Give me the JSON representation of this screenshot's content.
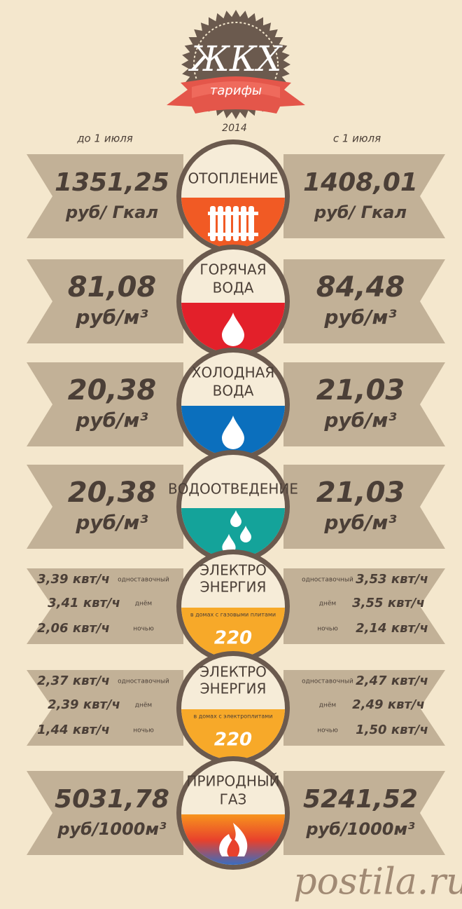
{
  "header": {
    "title": "ЖКХ",
    "ribbon": "тарифы",
    "year": "2014",
    "left_heading": "до 1 июля",
    "right_heading": "с 1 июля"
  },
  "rows": [
    {
      "label": [
        "ОТОПЛЕНИЕ"
      ],
      "icon": "radiator",
      "colors": [
        "#f15a24"
      ],
      "before": {
        "value": "1351,25",
        "unit": "руб/ Гкал"
      },
      "after": {
        "value": "1408,01",
        "unit": "руб/ Гкал"
      }
    },
    {
      "label": [
        "ГОРЯЧАЯ",
        "ВОДА"
      ],
      "icon": "drop",
      "colors": [
        "#e3202a"
      ],
      "before": {
        "value": "81,08",
        "unit": "руб/м³"
      },
      "after": {
        "value": "84,48",
        "unit": "руб/м³"
      }
    },
    {
      "label": [
        "ХОЛОДНАЯ",
        "ВОДА"
      ],
      "icon": "drop",
      "colors": [
        "#0b6fbd"
      ],
      "before": {
        "value": "20,38",
        "unit": "руб/м³"
      },
      "after": {
        "value": "21,03",
        "unit": "руб/м³"
      }
    },
    {
      "label": [
        "ВОДООТВЕДЕНИЕ"
      ],
      "icon": "drops",
      "colors": [
        "#14a39a"
      ],
      "before": {
        "value": "20,38",
        "unit": "руб/м³"
      },
      "after": {
        "value": "21,03",
        "unit": "руб/м³"
      }
    },
    {
      "label": [
        "ЭЛЕКТРО",
        "ЭНЕРГИЯ"
      ],
      "note": "в домах с газовыми плитами",
      "badge": "220",
      "colors": [
        "#f7a929"
      ],
      "before": [
        {
          "value": "3,39 квт/ч",
          "tariff": "одноставочный"
        },
        {
          "value": "3,41 квт/ч",
          "tariff": "днём"
        },
        {
          "value": "2,06 квт/ч",
          "tariff": "ночью"
        }
      ],
      "after": [
        {
          "value": "3,53 квт/ч",
          "tariff": "одноставочный"
        },
        {
          "value": "3,55 квт/ч",
          "tariff": "днём"
        },
        {
          "value": "2,14 квт/ч",
          "tariff": "ночью"
        }
      ]
    },
    {
      "label": [
        "ЭЛЕКТРО",
        "ЭНЕРГИЯ"
      ],
      "note": "в домах с электроплитами",
      "badge": "220",
      "colors": [
        "#f7a929"
      ],
      "before": [
        {
          "value": "2,37 квт/ч",
          "tariff": "одноставочный"
        },
        {
          "value": "2,39 квт/ч",
          "tariff": "днём"
        },
        {
          "value": "1,44 квт/ч",
          "tariff": "ночью"
        }
      ],
      "after": [
        {
          "value": "2,47 квт/ч",
          "tariff": "одноставочный"
        },
        {
          "value": "2,49 квт/ч",
          "tariff": "днём"
        },
        {
          "value": "1,50 квт/ч",
          "tariff": "ночью"
        }
      ]
    },
    {
      "label": [
        "ПРИРОДНЫЙ",
        "ГАЗ"
      ],
      "icon": "flame",
      "colors": [
        "#f7941d",
        "#e8412c",
        "#2f6fc9"
      ],
      "before": {
        "value": "5031,78",
        "unit": "руб/1000м³"
      },
      "after": {
        "value": "5241,52",
        "unit": "руб/1000м³"
      }
    }
  ],
  "watermark": "postila.ru"
}
